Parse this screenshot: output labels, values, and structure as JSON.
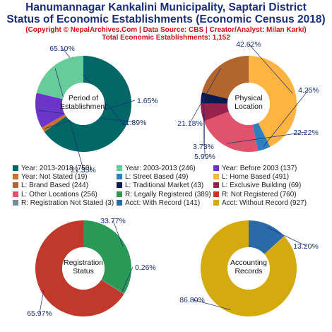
{
  "header": {
    "title_line1": "Hanumannagar Kankalini Municipality, Saptari District",
    "title_line2": "Status of Economic Establishments (Economic Census 2018)",
    "copyright": "(Copyright © NepalArchives.Com | Data Source: CBS | Creator/Analyst: Milan Karki)",
    "total": "Total Economic Establishments: 1,152"
  },
  "chart_data": [
    {
      "type": "pie",
      "center_label": [
        "Period of",
        "Establishment"
      ],
      "slices": [
        {
          "label": "Year: 2013-2018",
          "value": 750,
          "pct": "65.10%",
          "color": "#006666"
        },
        {
          "label": "Year: Not Stated",
          "value": 19,
          "pct": "1.65%",
          "color": "#c8722a"
        },
        {
          "label": "Year: Before 2003",
          "value": 137,
          "pct": "11.89%",
          "color": "#6a35c8"
        },
        {
          "label": "Year: 2003-2013",
          "value": 246,
          "pct": "21.35%",
          "color": "#66cc99"
        }
      ]
    },
    {
      "type": "pie",
      "center_label": [
        "Physical",
        "Location"
      ],
      "slices": [
        {
          "label": "L: Home Based",
          "value": 491,
          "pct": "42.62%",
          "color": "#ffb340"
        },
        {
          "label": "L: Street Based",
          "value": 49,
          "pct": "4.25%",
          "color": "#2d7fc1"
        },
        {
          "label": "L: Other Locations",
          "value": 256,
          "pct": "22.22%",
          "color": "#e0536b"
        },
        {
          "label": "L: Exclusive Building",
          "value": 69,
          "pct": "5.99%",
          "color": "#99224d"
        },
        {
          "label": "L: Traditional Market",
          "value": 43,
          "pct": "3.73%",
          "color": "#0d1a4d"
        },
        {
          "label": "L: Brand Based",
          "value": 244,
          "pct": "21.18%",
          "color": "#b3652e"
        }
      ]
    },
    {
      "type": "pie",
      "center_label": [
        "Registration",
        "Status"
      ],
      "slices": [
        {
          "label": "R: Legally Registered",
          "value": 389,
          "pct": "33.77%",
          "color": "#2a9955"
        },
        {
          "label": "R: Registration Not Stated",
          "value": 3,
          "pct": "0.26%",
          "color": "#7a8a99"
        },
        {
          "label": "R: Not Registered",
          "value": 760,
          "pct": "65.97%",
          "color": "#c0392b"
        }
      ]
    },
    {
      "type": "pie",
      "center_label": [
        "Accounting",
        "Records"
      ],
      "slices": [
        {
          "label": "Acct: With Record",
          "value": 141,
          "pct": "13.20%",
          "color": "#2a6aa8"
        },
        {
          "label": "Acct: Without Record",
          "value": 927,
          "pct": "86.80%",
          "color": "#d4aa0e"
        }
      ]
    }
  ],
  "legend": [
    {
      "text": "Year: 2013-2018 (750)",
      "color": "#006666"
    },
    {
      "text": "Year: 2003-2013 (246)",
      "color": "#66cc99"
    },
    {
      "text": "Year: Before 2003 (137)",
      "color": "#6a35c8"
    },
    {
      "text": "Year: Not Stated (19)",
      "color": "#c8722a"
    },
    {
      "text": "L: Street Based (49)",
      "color": "#2d7fc1"
    },
    {
      "text": "L: Home Based (491)",
      "color": "#ffb340"
    },
    {
      "text": "L: Brand Based (244)",
      "color": "#b3652e"
    },
    {
      "text": "L: Traditional Market (43)",
      "color": "#0d1a4d"
    },
    {
      "text": "L: Exclusive Building (69)",
      "color": "#99224d"
    },
    {
      "text": "L: Other Locations (256)",
      "color": "#e0536b"
    },
    {
      "text": "R: Legally Registered (389)",
      "color": "#2a9955"
    },
    {
      "text": "R: Not Registered (760)",
      "color": "#c0392b"
    },
    {
      "text": "R: Registration Not Stated (3)",
      "color": "#7a8a99"
    },
    {
      "text": "Acct: With Record (141)",
      "color": "#2a6aa8"
    },
    {
      "text": "Acct: Without Record (927)",
      "color": "#d4aa0e"
    }
  ]
}
